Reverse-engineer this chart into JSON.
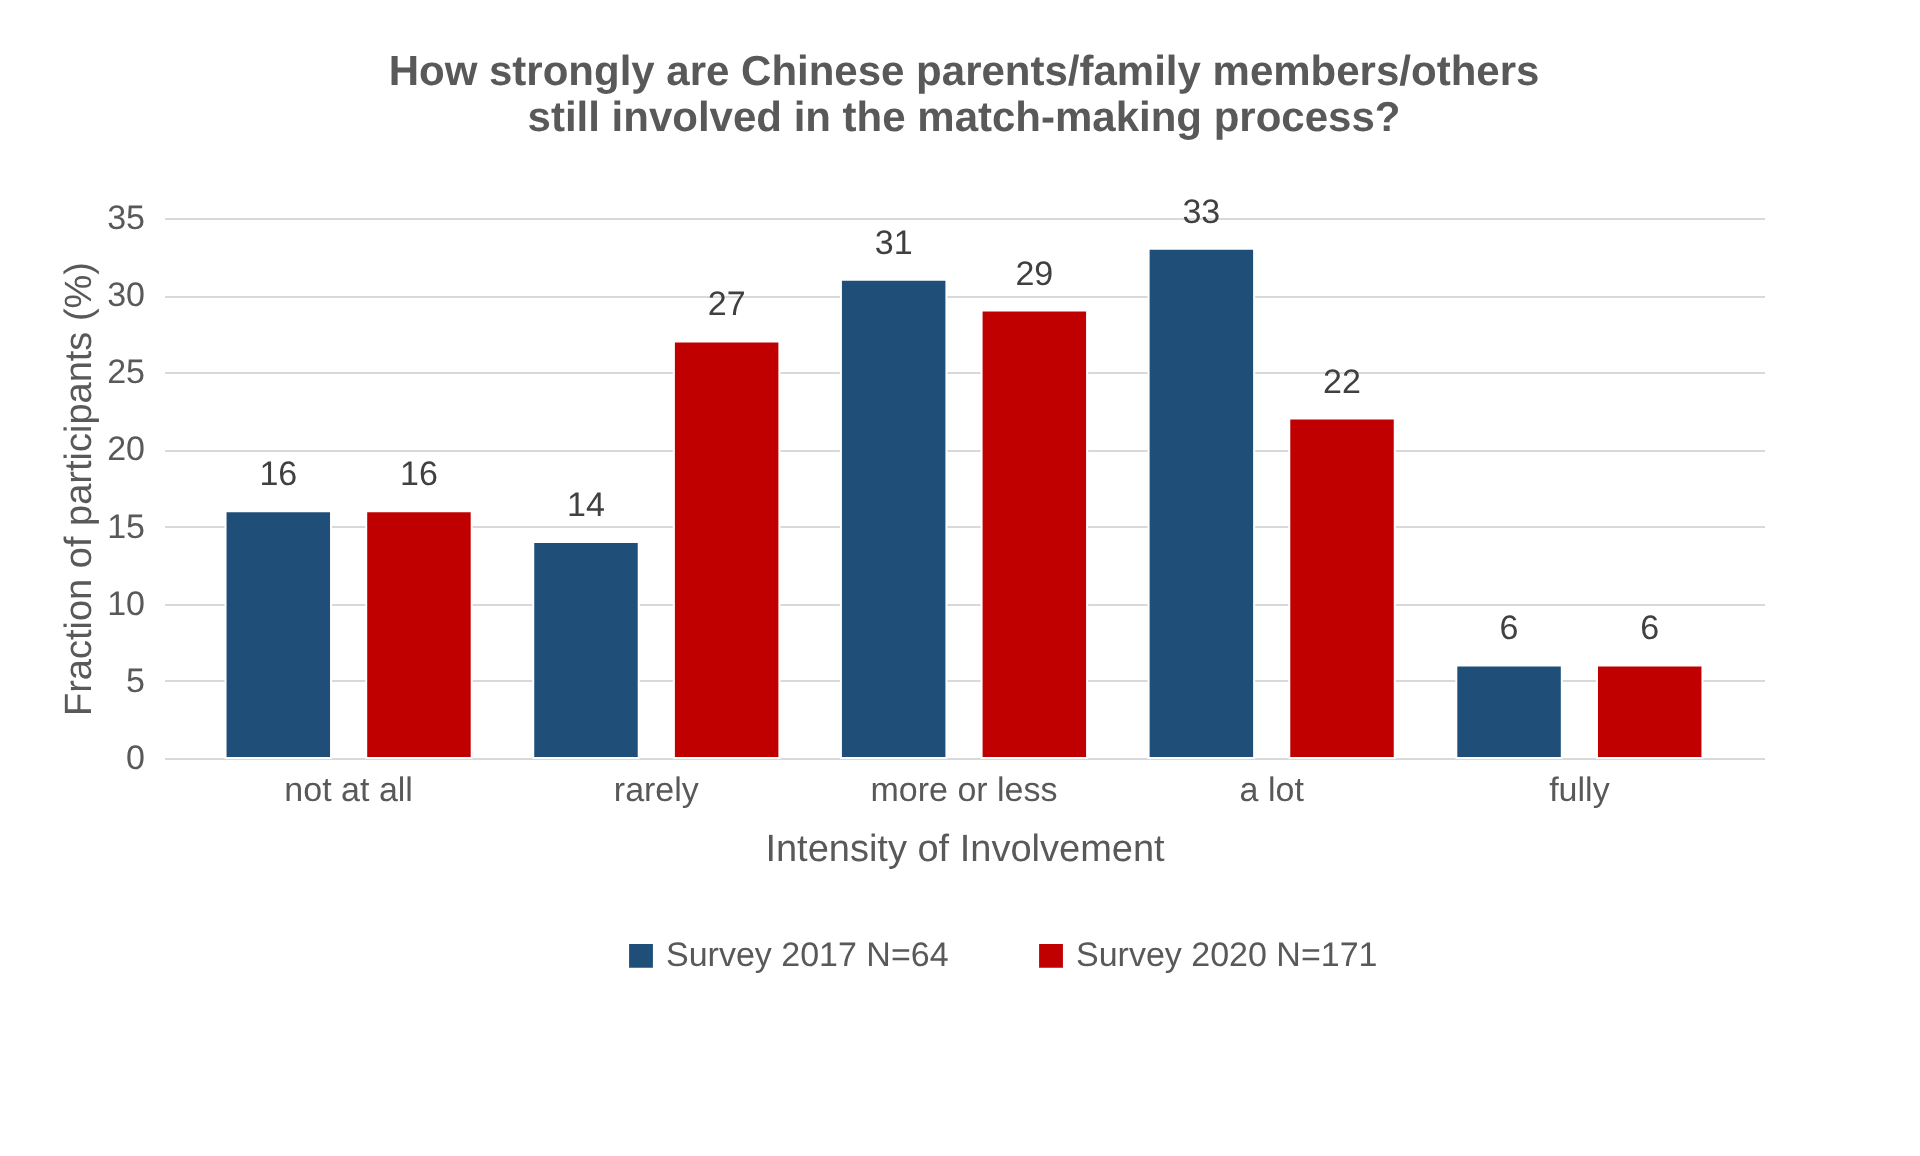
{
  "chart_data": {
    "type": "bar",
    "title": [
      "How strongly are Chinese parents/family members/others",
      "still involved in the match-making process?"
    ],
    "xlabel": "Intensity of Involvement",
    "ylabel": "Fraction of participants (%)",
    "categories": [
      "not at all",
      "rarely",
      "more or less",
      "a lot",
      "fully"
    ],
    "series": [
      {
        "name": "Survey 2017 N=64",
        "color": "#1f4e79",
        "values": [
          16,
          14,
          31,
          33,
          6
        ]
      },
      {
        "name": "Survey 2020 N=171",
        "color": "#c00000",
        "values": [
          16,
          27,
          29,
          22,
          6
        ]
      }
    ],
    "ylim": [
      0,
      35
    ],
    "yticks": [
      0,
      5,
      10,
      15,
      20,
      25,
      30,
      35
    ],
    "grid": "y",
    "legend": "bottom",
    "data_labels": true
  }
}
